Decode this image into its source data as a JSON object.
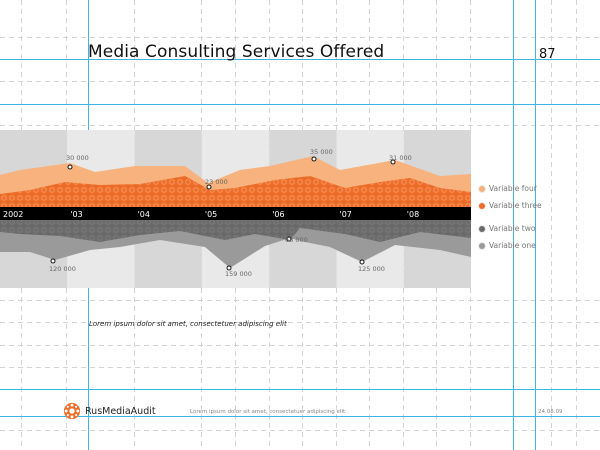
{
  "page": {
    "title": "Media Consulting Services Offered",
    "page_number": "87"
  },
  "chart_data": {
    "type": "area",
    "x": [
      "2002",
      "'03",
      "'04",
      "'05",
      "'06",
      "'07",
      "'08"
    ],
    "series": [
      {
        "name": "Variable four",
        "color": "#f8b27d"
      },
      {
        "name": "Variable three",
        "color": "#ee6d2a"
      },
      {
        "name": "Variable two",
        "color": "#6b6b6b"
      },
      {
        "name": "Variable one",
        "color": "#9a9a9a"
      }
    ],
    "annotations": [
      {
        "label": "30 000",
        "position": "upper"
      },
      {
        "label": "23 000",
        "position": "upper"
      },
      {
        "label": "35 000",
        "position": "upper"
      },
      {
        "label": "31 000",
        "position": "upper"
      },
      {
        "label": "120 000",
        "position": "lower"
      },
      {
        "label": "159 000",
        "position": "lower"
      },
      {
        "label": "68 000",
        "position": "lower"
      },
      {
        "label": "125 000",
        "position": "lower"
      }
    ],
    "title": "",
    "xlabel": "",
    "ylabel": "",
    "legend": "right"
  },
  "caption": "Lorem ipsum dolor sit amet, consectetuer adipiscing elit",
  "footer": {
    "brand": "RusMediaAudit",
    "text": "Lorem ipsum dolor sit amet, consectetuer adipiscing elit",
    "date": "24.08.09"
  },
  "colors": {
    "accent_orange": "#ee6d2a",
    "light_orange": "#f8b27d",
    "guide_blue": "#3bb6e3",
    "timeline_black": "#000000"
  }
}
